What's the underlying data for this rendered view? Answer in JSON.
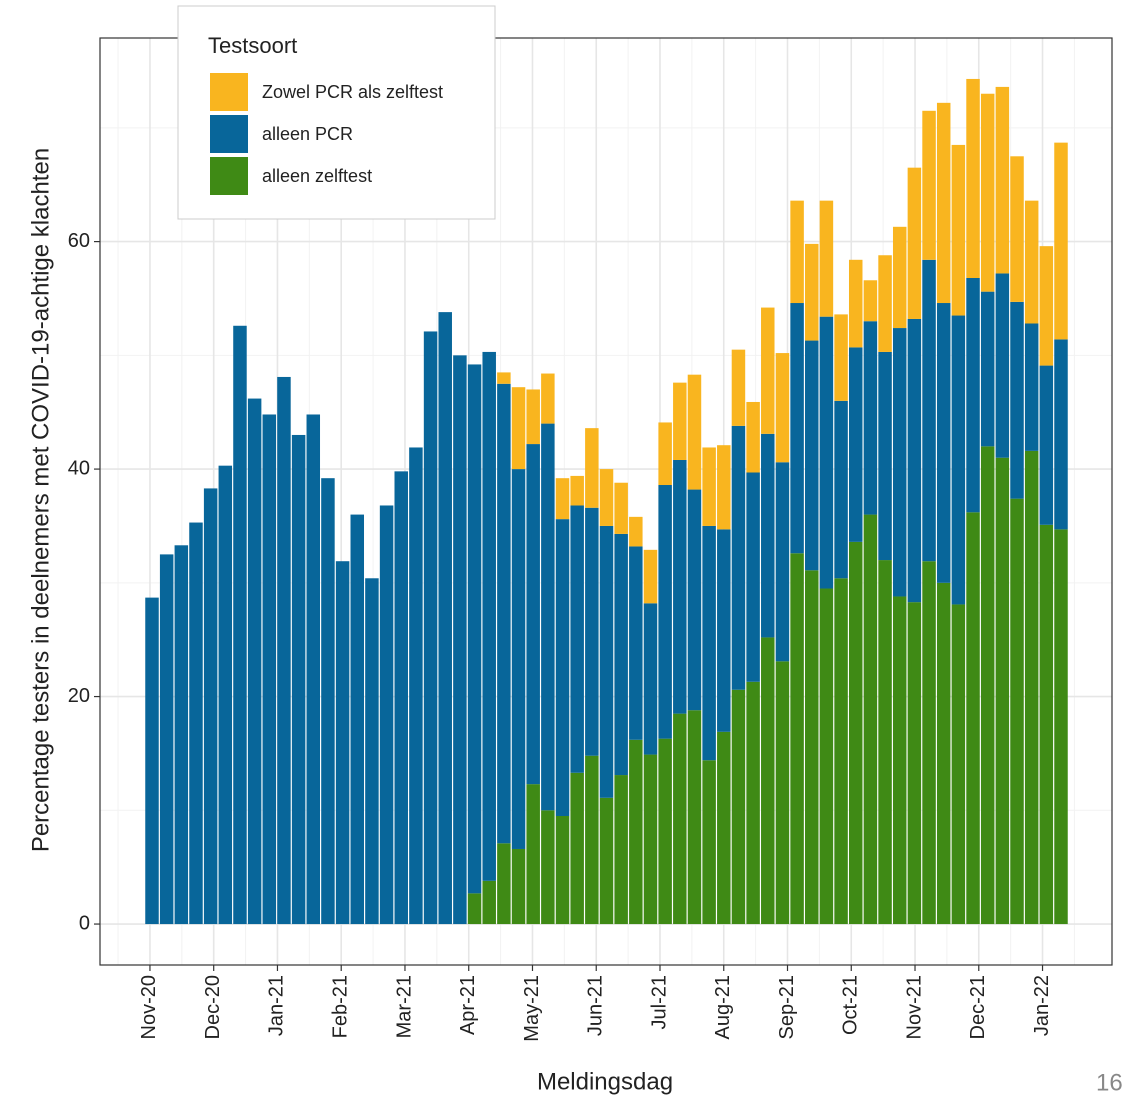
{
  "chart_data": {
    "type": "stacked_bar",
    "y_axis_label": "Percentage testers in deelnemers met COVID-19-achtige klachten",
    "x_axis_label": "Meldingsdag",
    "page_number": "16",
    "legend_title": "Testsoort",
    "legend_position": "top-left",
    "grid": true,
    "ylim": [
      -3.6,
      77.9
    ],
    "yticks": [
      0,
      20,
      40,
      60
    ],
    "xtick_labels": [
      "Nov-20",
      "Dec-20",
      "Jan-21",
      "Feb-21",
      "Mar-21",
      "Apr-21",
      "May-21",
      "Jun-21",
      "Jul-21",
      "Aug-21",
      "Sep-21",
      "Oct-21",
      "Nov-21",
      "Dec-21",
      "Jan-22"
    ],
    "categories": [
      null,
      null,
      null,
      null,
      null,
      null,
      null,
      null,
      null,
      null,
      null,
      null,
      null,
      null,
      null,
      null,
      null,
      null,
      null,
      null,
      null,
      null,
      null,
      null,
      null,
      null,
      null,
      null,
      null,
      null,
      null,
      null,
      null,
      null,
      null,
      null,
      null,
      null,
      null,
      null,
      null,
      null,
      null,
      null,
      null,
      null,
      null,
      null,
      null,
      null,
      null,
      null,
      null,
      null,
      null,
      null,
      null,
      null,
      null,
      null,
      null,
      null,
      null
    ],
    "series": [
      {
        "name": "Zowel PCR als zelftest",
        "color": "#F9B51F",
        "values": [
          0,
          0,
          0,
          0,
          0,
          0,
          0,
          0,
          0,
          0,
          0,
          0,
          0,
          0,
          0,
          0,
          0,
          0,
          0,
          0,
          0,
          0,
          0,
          0,
          1.0,
          7.2,
          4.8,
          4.4,
          3.6,
          2.6,
          7.0,
          5.0,
          4.5,
          2.6,
          4.7,
          5.5,
          6.8,
          10.1,
          6.9,
          7.4,
          6.7,
          6.2,
          11.1,
          9.6,
          9.0,
          8.5,
          10.2,
          7.6,
          7.7,
          3.6,
          8.5,
          8.9,
          13.3,
          13.1,
          17.6,
          15.0,
          17.5,
          17.4,
          16.4,
          12.8,
          10.8,
          10.5,
          17.3
        ]
      },
      {
        "name": "alleen PCR",
        "color": "#08669A",
        "values": [
          28.7,
          32.5,
          33.3,
          35.3,
          38.3,
          40.3,
          52.6,
          46.2,
          44.8,
          48.1,
          43.0,
          44.8,
          39.2,
          31.9,
          36.0,
          30.4,
          36.8,
          39.8,
          41.9,
          52.1,
          53.8,
          50.0,
          46.5,
          46.5,
          40.4,
          33.4,
          29.9,
          34.0,
          26.1,
          23.5,
          21.8,
          23.9,
          21.2,
          17.0,
          13.3,
          22.3,
          22.3,
          19.4,
          20.6,
          17.8,
          23.2,
          18.4,
          17.9,
          17.5,
          22.0,
          20.2,
          23.9,
          15.6,
          17.1,
          17.0,
          18.3,
          23.6,
          24.9,
          26.5,
          24.6,
          25.4,
          20.6,
          13.6,
          16.2,
          17.3,
          11.2,
          14.0,
          16.7
        ]
      },
      {
        "name": "alleen zelftest",
        "color": "#3F8A15",
        "values": [
          0,
          0,
          0,
          0,
          0,
          0,
          0,
          0,
          0,
          0,
          0,
          0,
          0,
          0,
          0,
          0,
          0,
          0,
          0,
          0,
          0,
          0,
          2.7,
          3.8,
          7.1,
          6.6,
          12.3,
          10.0,
          9.5,
          13.3,
          14.8,
          11.1,
          13.1,
          16.2,
          14.9,
          16.3,
          18.5,
          18.8,
          14.4,
          16.9,
          20.6,
          21.3,
          25.2,
          23.1,
          32.6,
          31.1,
          29.5,
          30.4,
          33.6,
          36.0,
          32.0,
          28.8,
          28.3,
          31.9,
          30.0,
          28.1,
          36.2,
          42.0,
          41.0,
          37.4,
          41.6,
          35.1,
          34.7
        ]
      }
    ]
  }
}
